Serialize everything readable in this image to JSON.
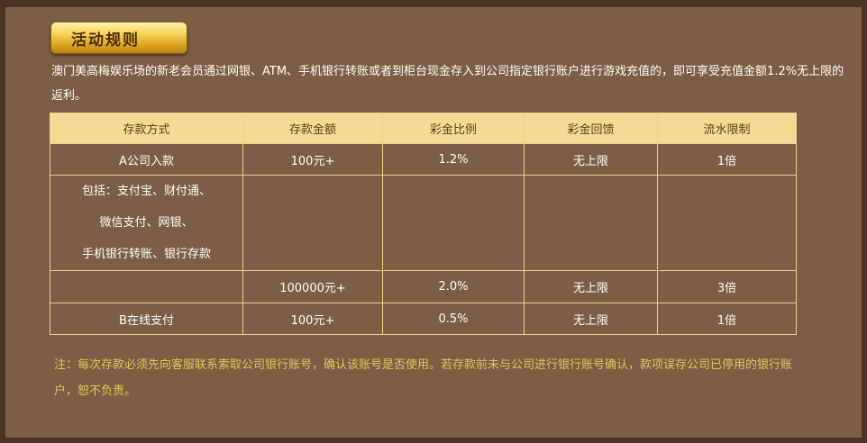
{
  "title": "活动规则",
  "intro": "澳门美高梅娱乐场的新老会员通过网银、ATM、手机银行转账或者到柜台现金存入到公司指定银行账户进行游戏充值的，即可享受充值金额1.2%无上限的返利。",
  "table": {
    "headers": [
      "存款方式",
      "存款金额",
      "彩金比例",
      "彩金回馈",
      "流水限制"
    ],
    "rows": [
      {
        "method": "A公司入款",
        "amount": "100元+",
        "ratio": "1.2%",
        "bonus": "无上限",
        "turnover": "1倍"
      },
      {
        "method_lines": [
          "包括：支付宝、财付通、",
          "微信支付、网银、",
          "手机银行转账、银行存款"
        ]
      },
      {
        "method": "",
        "amount": "100000元+",
        "ratio": "2.0%",
        "bonus": "无上限",
        "turnover": "3倍"
      },
      {
        "method": "B在线支付",
        "amount": "100元+",
        "ratio": "0.5%",
        "bonus": "无上限",
        "turnover": "1倍"
      }
    ]
  },
  "note": "注：每次存款必须先向客服联系索取公司银行账号，确认该账号是否使用。若存款前未与公司进行银行账号确认，款项误存公司已停用的银行账户，恕不负责。",
  "colors": {
    "background": "#7b5e45",
    "header": "#f2dc93",
    "note": "#e8c45a",
    "badge": "#f5cf52"
  }
}
